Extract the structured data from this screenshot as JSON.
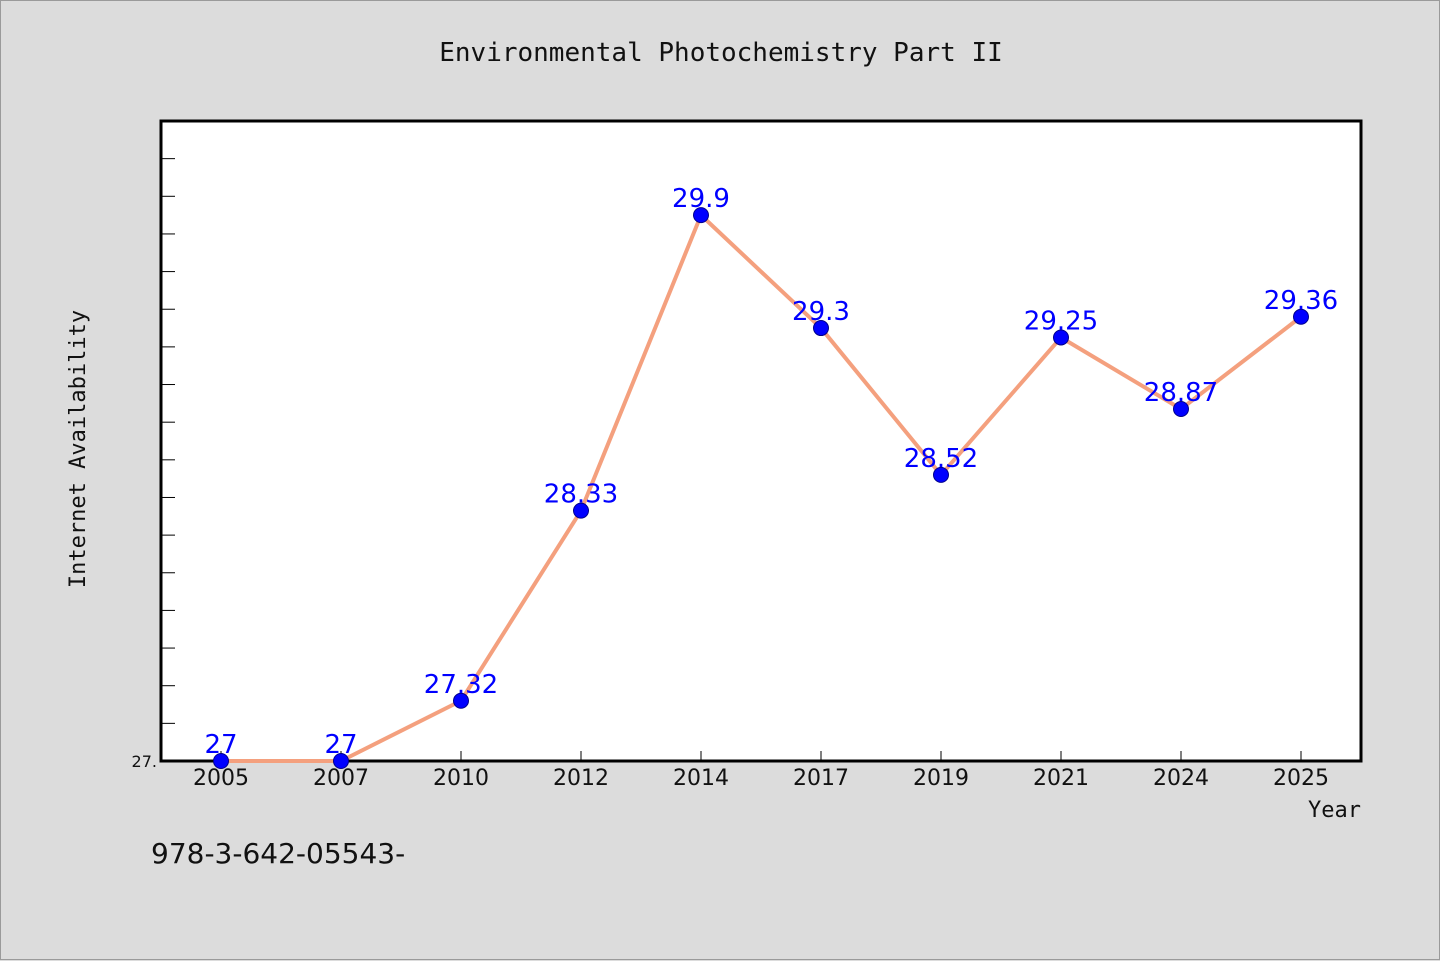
{
  "chart_data": {
    "type": "line",
    "title": "Environmental Photochemistry Part II",
    "xlabel": "Year",
    "ylabel": "Internet Availability",
    "categories": [
      "2005",
      "2007",
      "2010",
      "2012",
      "2014",
      "2017",
      "2019",
      "2021",
      "2024",
      "2025"
    ],
    "values": [
      27,
      27,
      27.32,
      28.33,
      29.9,
      29.3,
      28.52,
      29.25,
      28.87,
      29.36
    ],
    "data_labels": [
      "27",
      "27",
      "27.32",
      "28.33",
      "29.9",
      "29.3",
      "28.52",
      "29.25",
      "28.87",
      "29.36"
    ],
    "ytick_labels": [
      "27."
    ],
    "ylim": [
      27,
      30.4
    ],
    "grid": false,
    "legend": "none",
    "line_color": "#f4a07e",
    "marker_color": "#0000ff"
  },
  "footnote": "978-3-642-05543-"
}
